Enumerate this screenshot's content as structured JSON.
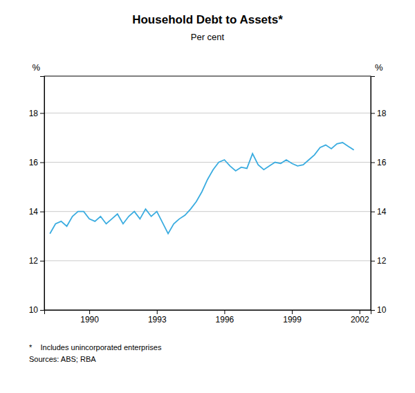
{
  "chart_data": {
    "type": "line",
    "title": "Household Debt to Assets*",
    "subtitle": "Per cent",
    "ylabel": "%",
    "y2label": "%",
    "annotations": [
      "*    Includes unincorporated enterprises",
      "Sources: ABS; RBA"
    ],
    "color": "#3AACE0",
    "grid": true,
    "xlim": [
      1988.0,
      2002.5
    ],
    "xticks": [
      1990,
      1993,
      1996,
      1999,
      2002
    ],
    "ylim": [
      10,
      19.5
    ],
    "yticks": [
      10,
      12,
      14,
      16,
      18
    ],
    "y2lim": [
      10,
      19.5
    ],
    "y2ticks": [
      10,
      12,
      14,
      16,
      18
    ],
    "x": [
      1988.25,
      1988.5,
      1988.75,
      1989.0,
      1989.25,
      1989.5,
      1989.75,
      1990.0,
      1990.25,
      1990.5,
      1990.75,
      1991.0,
      1991.25,
      1991.5,
      1991.75,
      1992.0,
      1992.25,
      1992.5,
      1992.75,
      1993.0,
      1993.25,
      1993.5,
      1993.75,
      1994.0,
      1994.25,
      1994.5,
      1994.75,
      1995.0,
      1995.25,
      1995.5,
      1995.75,
      1996.0,
      1996.25,
      1996.5,
      1996.75,
      1997.0,
      1997.25,
      1997.5,
      1997.75,
      1998.0,
      1998.25,
      1998.5,
      1998.75,
      1999.0,
      1999.25,
      1999.5,
      1999.75,
      2000.0,
      2000.25,
      2000.5,
      2000.75,
      2001.0,
      2001.25,
      2001.5,
      2001.75
    ],
    "values": [
      13.1,
      13.5,
      13.6,
      13.4,
      13.8,
      14.0,
      14.0,
      13.7,
      13.6,
      13.8,
      13.5,
      13.7,
      13.9,
      13.5,
      13.8,
      14.0,
      13.7,
      14.1,
      13.8,
      14.0,
      13.55,
      13.1,
      13.5,
      13.7,
      13.85,
      14.1,
      14.4,
      14.8,
      15.3,
      15.7,
      16.0,
      16.1,
      15.85,
      15.65,
      15.8,
      15.75,
      16.35,
      15.9,
      15.7,
      15.85,
      16.0,
      15.95,
      16.1,
      15.95,
      15.85,
      15.9,
      16.1,
      16.3,
      16.6,
      16.7,
      16.55,
      16.75,
      16.8,
      16.65,
      16.5
    ]
  }
}
